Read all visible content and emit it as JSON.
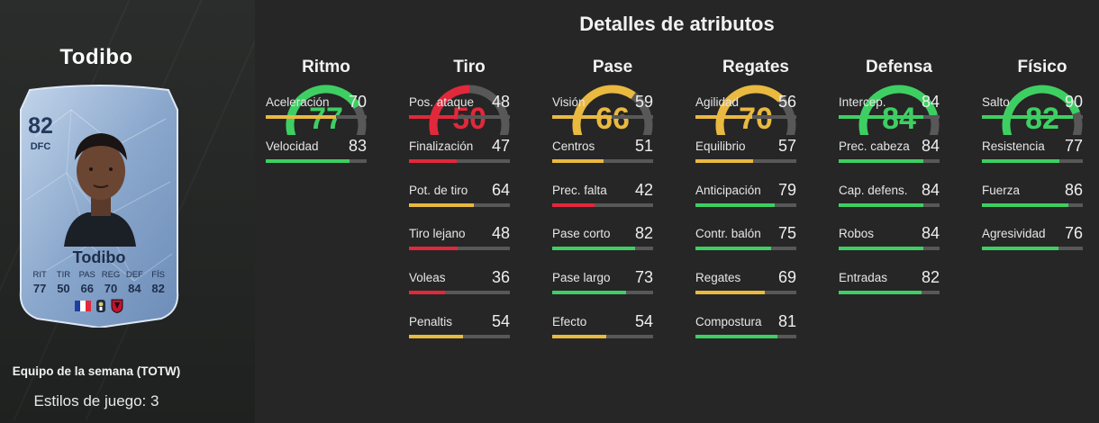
{
  "player": {
    "name": "Todibo",
    "rating": "82",
    "position": "DFC",
    "card_stat_labels": [
      "RIT",
      "TIR",
      "PAS",
      "REG",
      "DEF",
      "FÍS"
    ],
    "card_stat_values": [
      "77",
      "50",
      "66",
      "70",
      "84",
      "82"
    ],
    "team_label": "Equipo de la semana (TOTW)",
    "play_styles": "Estilos de juego: 3"
  },
  "panel": {
    "title": "Detalles de atributos"
  },
  "colors": {
    "green": "#3ecf63",
    "yellow": "#e9b940",
    "red": "#e2283b",
    "track": "#585858"
  },
  "categories": [
    {
      "name": "Ritmo",
      "value": 77,
      "color": "green",
      "attributes": [
        {
          "name": "Aceleración",
          "value": 70,
          "color": "yellow"
        },
        {
          "name": "Velocidad",
          "value": 83,
          "color": "green"
        }
      ]
    },
    {
      "name": "Tiro",
      "value": 50,
      "color": "red",
      "attributes": [
        {
          "name": "Pos. ataque",
          "value": 48,
          "color": "red"
        },
        {
          "name": "Finalización",
          "value": 47,
          "color": "red"
        },
        {
          "name": "Pot. de tiro",
          "value": 64,
          "color": "yellow"
        },
        {
          "name": "Tiro lejano",
          "value": 48,
          "color": "red"
        },
        {
          "name": "Voleas",
          "value": 36,
          "color": "red"
        },
        {
          "name": "Penaltis",
          "value": 54,
          "color": "yellow"
        }
      ]
    },
    {
      "name": "Pase",
      "value": 66,
      "color": "yellow",
      "attributes": [
        {
          "name": "Visión",
          "value": 59,
          "color": "yellow"
        },
        {
          "name": "Centros",
          "value": 51,
          "color": "yellow"
        },
        {
          "name": "Prec. falta",
          "value": 42,
          "color": "red"
        },
        {
          "name": "Pase corto",
          "value": 82,
          "color": "green"
        },
        {
          "name": "Pase largo",
          "value": 73,
          "color": "green"
        },
        {
          "name": "Efecto",
          "value": 54,
          "color": "yellow"
        }
      ]
    },
    {
      "name": "Regates",
      "value": 70,
      "color": "yellow",
      "attributes": [
        {
          "name": "Agilidad",
          "value": 56,
          "color": "yellow"
        },
        {
          "name": "Equilibrio",
          "value": 57,
          "color": "yellow"
        },
        {
          "name": "Anticipación",
          "value": 79,
          "color": "green"
        },
        {
          "name": "Contr. balón",
          "value": 75,
          "color": "green"
        },
        {
          "name": "Regates",
          "value": 69,
          "color": "yellow"
        },
        {
          "name": "Compostura",
          "value": 81,
          "color": "green"
        }
      ]
    },
    {
      "name": "Defensa",
      "value": 84,
      "color": "green",
      "attributes": [
        {
          "name": "Intercep.",
          "value": 84,
          "color": "green"
        },
        {
          "name": "Prec. cabeza",
          "value": 84,
          "color": "green"
        },
        {
          "name": "Cap. defens.",
          "value": 84,
          "color": "green"
        },
        {
          "name": "Robos",
          "value": 84,
          "color": "green"
        },
        {
          "name": "Entradas",
          "value": 82,
          "color": "green"
        }
      ]
    },
    {
      "name": "Físico",
      "value": 82,
      "color": "green",
      "attributes": [
        {
          "name": "Salto",
          "value": 90,
          "color": "green"
        },
        {
          "name": "Resistencia",
          "value": 77,
          "color": "green"
        },
        {
          "name": "Fuerza",
          "value": 86,
          "color": "green"
        },
        {
          "name": "Agresividad",
          "value": 76,
          "color": "green"
        }
      ]
    }
  ],
  "card_icons": [
    "france-flag-icon",
    "ligue1-logo-icon",
    "nice-club-badge-icon"
  ]
}
